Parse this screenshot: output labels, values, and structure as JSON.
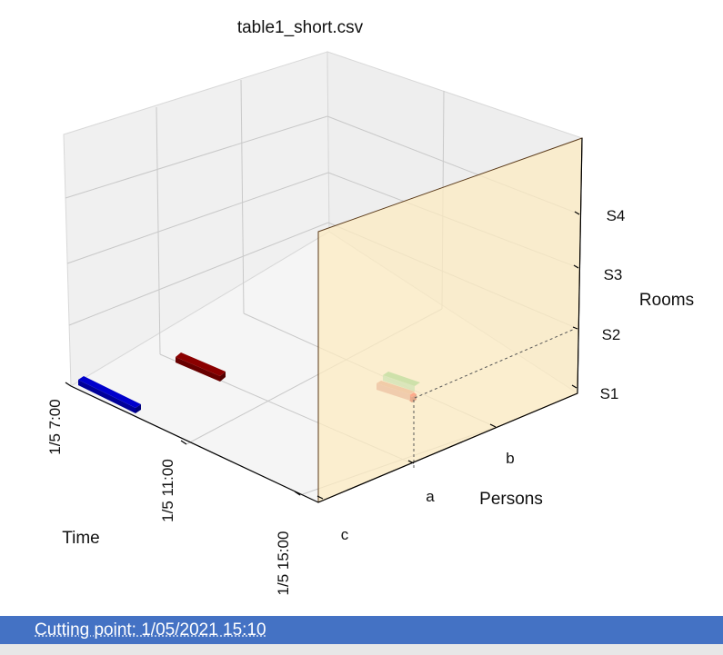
{
  "chart_data": {
    "type": "3d-bar",
    "title": "table1_short.csv",
    "xlabel": "Time",
    "ylabel": "Persons",
    "zlabel": "Rooms",
    "x_ticks": [
      "1/5  7:00",
      "1/5  11:00",
      "1/5  15:00"
    ],
    "y_ticks": [
      "a",
      "b",
      "c"
    ],
    "z_ticks": [
      "S1",
      "S2",
      "S3",
      "S4"
    ],
    "grid": true,
    "cutting_plane": {
      "time": "1/5  15:10",
      "color": "#fdebc0"
    },
    "series": [
      {
        "person": "c",
        "room": "S1",
        "start": "1/5  7:00",
        "end": "1/5  8:30",
        "color": "#0000cc"
      },
      {
        "person": "b",
        "room": "S1",
        "start": "1/5  7:00",
        "end": "1/5  8:30",
        "color": "#8b0000"
      },
      {
        "person": "a",
        "room": "S1",
        "start": "1/5  15:00",
        "end": "1/5  15:10",
        "color": "#ff0000"
      }
    ]
  },
  "status": {
    "label": "Cutting point: 1/05/2021 15:10"
  },
  "colors": {
    "status_bg": "#4472c4",
    "pane": "#f2f2f2",
    "grid": "#c8c8c8"
  }
}
